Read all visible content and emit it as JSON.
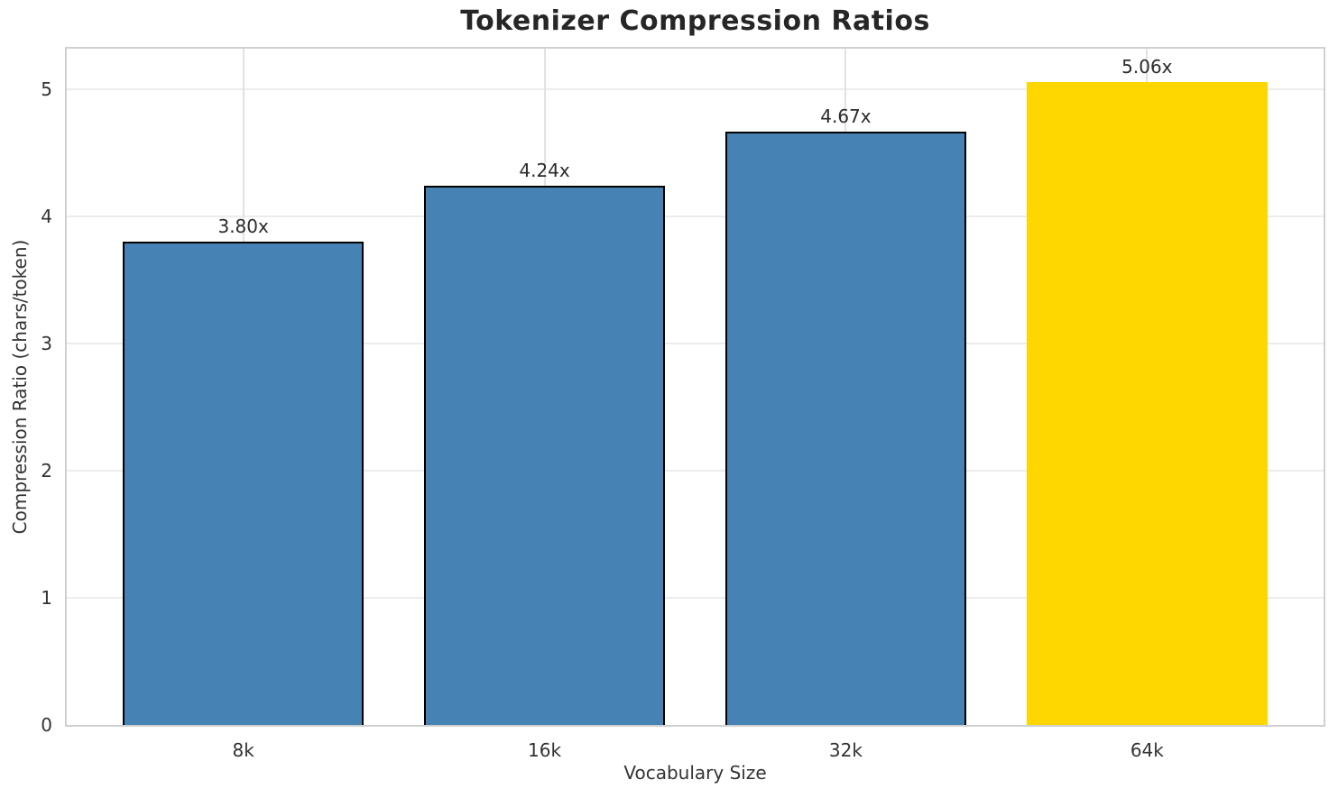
{
  "title": "Tokenizer Compression Ratios",
  "chart_data": {
    "type": "bar",
    "title": "Tokenizer Compression Ratios",
    "xlabel": "Vocabulary Size",
    "ylabel": "Compression Ratio (chars/token)",
    "categories": [
      "8k",
      "16k",
      "32k",
      "64k"
    ],
    "values": [
      3.8,
      4.24,
      4.67,
      5.06
    ],
    "bar_value_labels": [
      "3.80x",
      "4.24x",
      "4.67x",
      "5.06x"
    ],
    "bar_colors": [
      "#4682B4",
      "#4682B4",
      "#4682B4",
      "#FFD700"
    ],
    "bar_edge_colors": [
      "#000000",
      "#000000",
      "#000000",
      "none"
    ],
    "ylim": [
      0,
      5.32
    ],
    "yticks": [
      0,
      1,
      2,
      3,
      4,
      5
    ],
    "grid": true,
    "legend": "none",
    "colors": {
      "default_bar": "#4682B4",
      "highlight_bar": "#FFD700",
      "bar_edge": "#000000",
      "grid_line": "#e8e8e8",
      "spine": "#d0d0d0",
      "text": "#333333",
      "title_text": "#262626",
      "background": "#ffffff"
    }
  }
}
